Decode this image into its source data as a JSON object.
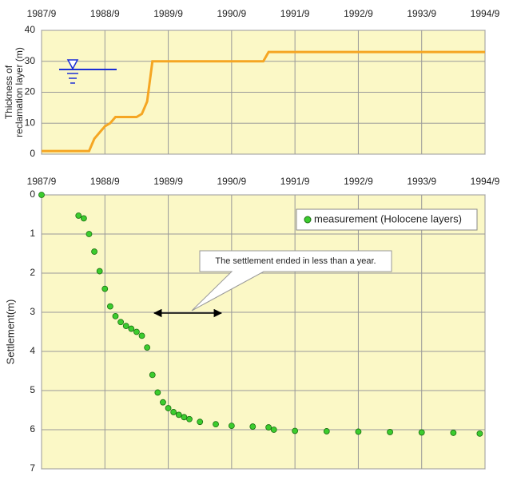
{
  "chart_data": [
    {
      "type": "line",
      "ylabel": [
        "Thickness of",
        "reclamation layer (m)"
      ],
      "x": [
        "1987/9",
        "1988/6",
        "1988/7",
        "1988/8",
        "1988/9",
        "1988/10",
        "1988/11",
        "1989/3",
        "1989/4",
        "1989/5",
        "1989/6",
        "1991/3",
        "1991/4",
        "1994/9"
      ],
      "series": [
        {
          "color": "#f5a623",
          "values": [
            1,
            1,
            5,
            7,
            9,
            10,
            12,
            12,
            13,
            17,
            30,
            30,
            33,
            33
          ]
        }
      ],
      "xlim": [
        "1987/9",
        "1994/9"
      ],
      "xticks": [
        "1987/9",
        "1988/9",
        "1989/9",
        "1990/9",
        "1991/9",
        "1992/9",
        "1993/9",
        "1994/9"
      ],
      "ylim": [
        0,
        40
      ],
      "yticks": [
        0,
        10,
        20,
        30,
        40
      ],
      "grid": true
    },
    {
      "type": "scatter",
      "ylabel": "Settlement(m)",
      "x": [
        "1987/9",
        "1988/4",
        "1988/5",
        "1988/6",
        "1988/7",
        "1988/8",
        "1988/9",
        "1988/10",
        "1988/11",
        "1988/12",
        "1989/1",
        "1989/2",
        "1989/3",
        "1989/4",
        "1989/5",
        "1989/6",
        "1989/7",
        "1989/8",
        "1989/9",
        "1989/10",
        "1989/11",
        "1989/12",
        "1990/1",
        "1990/3",
        "1990/6",
        "1990/9",
        "1991/1",
        "1991/4",
        "1991/5",
        "1991/9",
        "1992/3",
        "1992/9",
        "1993/3",
        "1993/9",
        "1994/3",
        "1994/8"
      ],
      "series": [
        {
          "name": "measurement (Holocene layers)",
          "color": "#3ccc2e",
          "values": [
            0,
            0.53,
            0.6,
            1.0,
            1.45,
            1.95,
            2.4,
            2.85,
            3.1,
            3.25,
            3.35,
            3.42,
            3.5,
            3.6,
            3.9,
            4.6,
            5.05,
            5.3,
            5.45,
            5.55,
            5.62,
            5.68,
            5.73,
            5.8,
            5.86,
            5.9,
            5.92,
            5.94,
            6.0,
            6.03,
            6.04,
            6.05,
            6.06,
            6.07,
            6.08,
            6.1
          ]
        }
      ],
      "xlim": [
        "1987/9",
        "1994/9"
      ],
      "xticks": [
        "1987/9",
        "1988/9",
        "1989/9",
        "1990/9",
        "1991/9",
        "1992/9",
        "1993/9",
        "1994/9"
      ],
      "ylim": [
        0,
        7
      ],
      "yticks": [
        0,
        1,
        2,
        3,
        4,
        5,
        6,
        7
      ],
      "y_inverted": true,
      "grid": true,
      "legend": "upper right",
      "annotation": "The settlement ended in less than a year."
    }
  ]
}
